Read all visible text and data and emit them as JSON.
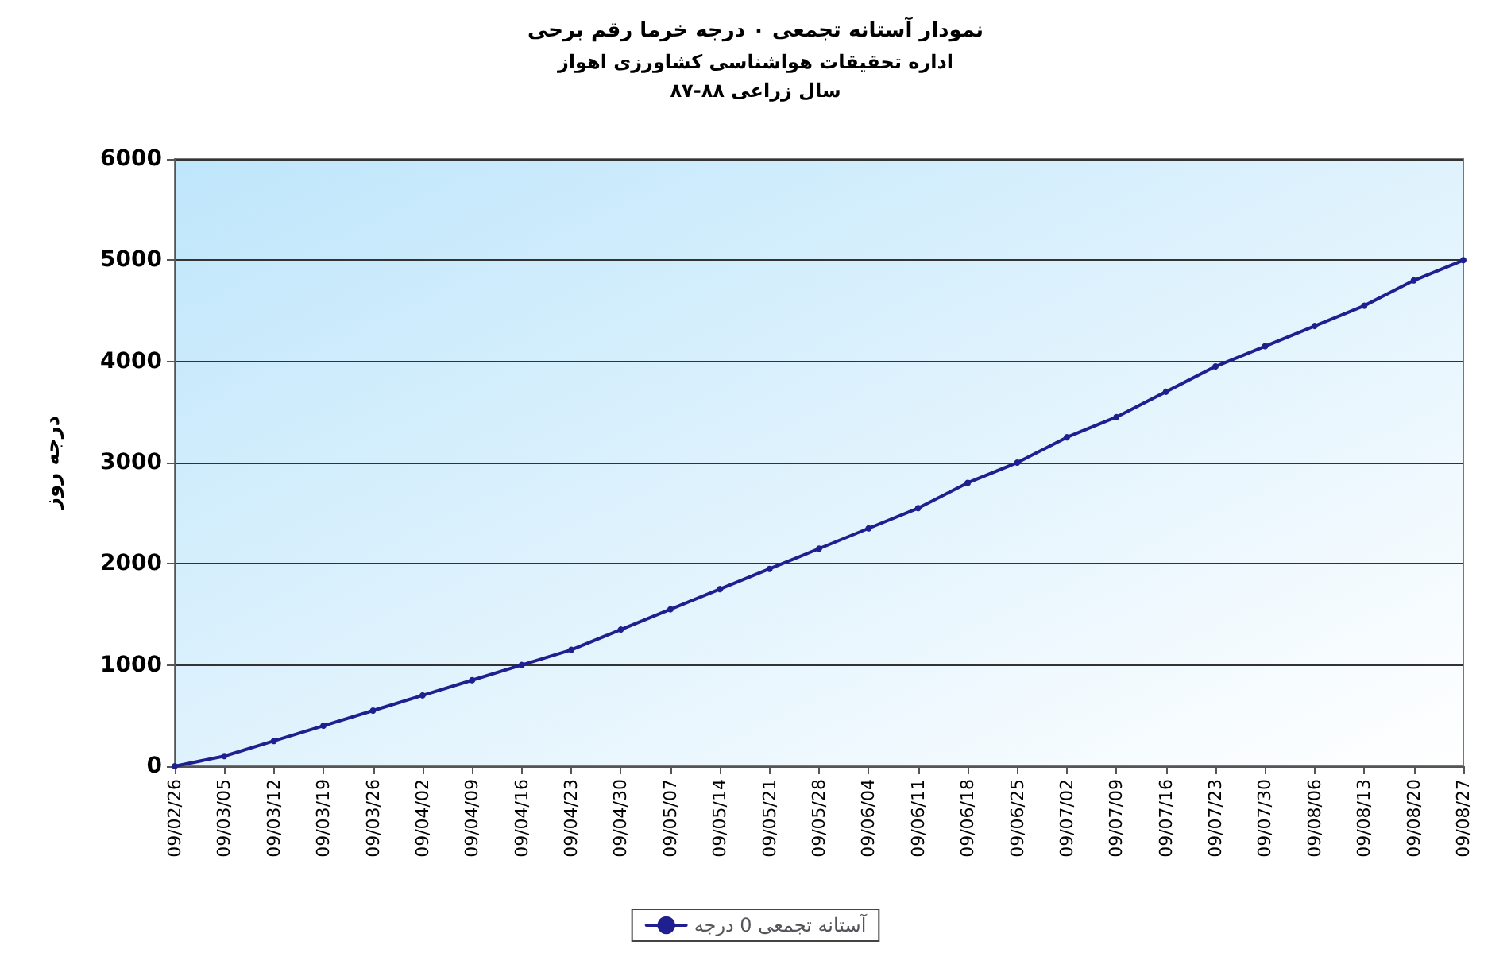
{
  "chart_data": {
    "type": "line",
    "title": "نمودار آستانه تجمعی ۰ درجه خرما رقم برحی",
    "subtitle": "اداره تحقیقات هواشناسی کشاورزی اهواز\nسال زراعی ۸۸-۸۷",
    "ylabel": "درجه روز",
    "categories": [
      "09/02/26",
      "09/03/05",
      "09/03/12",
      "09/03/19",
      "09/03/26",
      "09/04/02",
      "09/04/09",
      "09/04/16",
      "09/04/23",
      "09/04/30",
      "09/05/07",
      "09/05/14",
      "09/05/21",
      "09/05/28",
      "09/06/04",
      "09/06/11",
      "09/06/18",
      "09/06/25",
      "09/07/02",
      "09/07/09",
      "09/07/16",
      "09/07/23",
      "09/07/30",
      "09/08/06",
      "09/08/13",
      "09/08/20",
      "09/08/27"
    ],
    "series": [
      {
        "name": "آستانه تجمعی 0 درجه",
        "color": "#1f1f8f",
        "values": [
          0,
          100,
          250,
          400,
          550,
          700,
          850,
          1000,
          1150,
          1350,
          1550,
          1750,
          1950,
          2150,
          2350,
          2550,
          2800,
          3000,
          3250,
          3450,
          3700,
          3950,
          4150,
          4350,
          4550,
          4800,
          5000
        ]
      }
    ],
    "ylim": [
      0,
      6000
    ],
    "yticks": [
      0,
      1000,
      2000,
      3000,
      4000,
      5000,
      6000
    ],
    "grid": "y",
    "legend": "bottom",
    "marker": "circle",
    "line_style": "solid"
  }
}
